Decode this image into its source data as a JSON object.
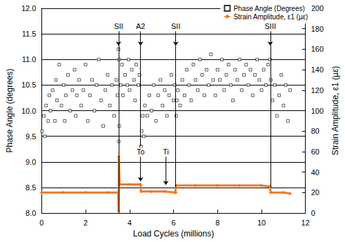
{
  "chart_data": {
    "type": "scatter",
    "x_label": "Load Cycles (millions)",
    "y_label": "Phase Angle (degrees)",
    "y2_label": "Strain Amplitude, ε1 (µε)",
    "xlim": [
      0,
      12
    ],
    "xticks": [
      0,
      2,
      4,
      6,
      8,
      10,
      12
    ],
    "ylim": [
      8,
      12
    ],
    "yticks": [
      {
        "value": 8,
        "label": "8.0"
      },
      {
        "value": 8.5,
        "label": "8.5"
      },
      {
        "value": 9,
        "label": "9.0"
      },
      {
        "value": 9.5,
        "label": "9.5"
      },
      {
        "value": 10,
        "label": "10.0"
      },
      {
        "value": 10.5,
        "label": "10.5"
      },
      {
        "value": 11,
        "label": "11.0"
      },
      {
        "value": 11.5,
        "label": "11.5"
      },
      {
        "value": 12,
        "label": "12.0"
      }
    ],
    "y2lim": [
      0,
      200
    ],
    "y2ticks": [
      0,
      20,
      40,
      60,
      80,
      100,
      120,
      140,
      160,
      180,
      200
    ],
    "grid": true,
    "legend": "top-right",
    "series": [
      {
        "name": "Phase Angle (Degrees)",
        "type": "scatter",
        "marker": "square_open",
        "color": "#000000",
        "x": [
          0.02,
          0.1,
          0.15,
          0.2,
          0.3,
          0.35,
          0.4,
          0.5,
          0.6,
          0.65,
          0.7,
          0.8,
          0.9,
          1.0,
          1.05,
          1.1,
          1.2,
          1.3,
          1.4,
          1.5,
          1.55,
          1.6,
          1.7,
          1.8,
          1.9,
          2.0,
          2.1,
          2.2,
          2.3,
          2.4,
          2.5,
          2.6,
          2.7,
          2.8,
          2.9,
          3.0,
          3.1,
          3.2,
          3.3,
          3.4,
          3.45,
          3.5,
          3.51,
          3.52,
          3.53,
          3.6,
          3.65,
          3.7,
          3.8,
          3.9,
          3.95,
          4.0,
          4.1,
          4.2,
          4.25,
          4.3,
          4.4,
          4.45,
          4.52,
          4.55,
          4.6,
          4.65,
          4.7,
          4.8,
          4.9,
          5.0,
          5.1,
          5.2,
          5.3,
          5.4,
          5.5,
          5.6,
          5.7,
          5.8,
          5.9,
          6.0,
          6.05,
          6.12,
          6.15,
          6.2,
          6.3,
          6.4,
          6.5,
          6.6,
          6.7,
          6.8,
          6.9,
          7.0,
          7.1,
          7.2,
          7.3,
          7.4,
          7.5,
          7.6,
          7.7,
          7.8,
          7.9,
          8.0,
          8.1,
          8.2,
          8.3,
          8.4,
          8.5,
          8.6,
          8.7,
          8.8,
          8.9,
          9.0,
          9.1,
          9.2,
          9.3,
          9.4,
          9.5,
          9.6,
          9.7,
          9.8,
          9.9,
          10.0,
          10.1,
          10.2,
          10.3,
          10.38,
          10.42,
          10.5,
          10.6,
          10.7,
          10.8,
          10.9,
          11.0,
          11.1,
          11.2,
          11.3
        ],
        "values": [
          9.6,
          9.9,
          9.5,
          10.1,
          9.8,
          10.3,
          10.0,
          10.4,
          9.8,
          10.6,
          10.2,
          10.9,
          10.1,
          10.5,
          9.8,
          10.3,
          10.7,
          10.0,
          10.4,
          10.8,
          9.9,
          10.3,
          10.6,
          10.1,
          10.4,
          10.9,
          9.8,
          10.3,
          10.6,
          10.0,
          10.5,
          11.0,
          10.2,
          9.7,
          10.4,
          10.7,
          10.1,
          10.5,
          9.9,
          10.6,
          10.3,
          11.2,
          9.4,
          11.0,
          9.7,
          10.5,
          10.9,
          10.3,
          10.7,
          10.5,
          11.0,
          10.4,
          10.8,
          10.6,
          10.2,
          10.9,
          10.5,
          10.7,
          9.3,
          9.6,
          9.9,
          9.5,
          10.1,
          9.9,
          10.3,
          10.0,
          10.5,
          9.8,
          10.3,
          10.6,
          10.1,
          10.4,
          9.9,
          10.3,
          10.7,
          10.2,
          10.5,
          9.9,
          10.2,
          10.4,
          10.1,
          10.6,
          10.3,
          10.8,
          10.5,
          10.2,
          10.9,
          10.6,
          10.4,
          11.0,
          10.7,
          10.3,
          10.8,
          10.5,
          11.1,
          10.6,
          10.3,
          10.8,
          10.6,
          11.0,
          10.4,
          10.7,
          10.9,
          10.5,
          10.2,
          10.8,
          10.6,
          11.0,
          10.4,
          10.7,
          10.9,
          10.5,
          10.8,
          10.3,
          10.7,
          11.0,
          10.6,
          10.4,
          10.8,
          10.5,
          10.9,
          11.0,
          10.6,
          10.2,
          10.5,
          9.9,
          10.3,
          10.7,
          10.1,
          10.5,
          9.8,
          10.4
        ]
      },
      {
        "name": "Strain Amplitude, ε1 (µε)",
        "type": "line",
        "marker": "diamond",
        "color": "#f07828",
        "axis": "y2",
        "x": [
          0,
          1,
          2,
          3,
          3.48,
          3.5,
          3.51,
          3.55,
          4,
          4.5,
          4.52,
          5,
          5.6,
          6.08,
          6.1,
          6.12,
          7,
          8,
          9,
          10,
          10.38,
          10.4,
          10.42,
          11,
          11.3
        ],
        "values": [
          20,
          20,
          20,
          20,
          20,
          2,
          55,
          28,
          28,
          28,
          21,
          21,
          21,
          20,
          20,
          27,
          27,
          27,
          27,
          27,
          26,
          26,
          20,
          20,
          19
        ]
      }
    ],
    "annotations": [
      {
        "text": "SII",
        "x": 3.5,
        "y": 11.55,
        "y_end": 11.27
      },
      {
        "text": "A2",
        "x": 4.5,
        "y": 11.55,
        "y_end": 11.27
      },
      {
        "text": "SII",
        "x": 6.1,
        "y": 11.55,
        "y_end": 11.27
      },
      {
        "text": "SIII",
        "x": 10.4,
        "y": 11.55,
        "y_end": 11.27
      },
      {
        "text": "To",
        "x": 4.5,
        "y": 9.1,
        "y_end": 8.62
      },
      {
        "text": "Ti",
        "x": 5.65,
        "y": 9.1,
        "y_end": 8.55
      }
    ],
    "vlines": [
      {
        "x": 3.5,
        "y": [
          8.0,
          11.27
        ]
      },
      {
        "x": 4.5,
        "y": [
          9.3,
          11.27
        ]
      },
      {
        "x": 6.1,
        "y": [
          8.5,
          11.27
        ]
      },
      {
        "x": 10.4,
        "y": [
          8.5,
          11.27
        ]
      }
    ]
  }
}
